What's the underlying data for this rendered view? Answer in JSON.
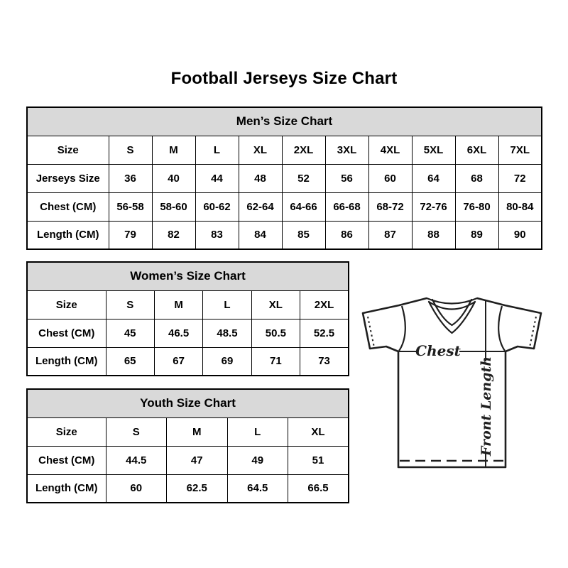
{
  "title": "Football Jerseys Size Chart",
  "tables": {
    "mens": {
      "title": "Men’s Size Chart",
      "rows": [
        {
          "label": "Size",
          "values": [
            "S",
            "M",
            "L",
            "XL",
            "2XL",
            "3XL",
            "4XL",
            "5XL",
            "6XL",
            "7XL"
          ]
        },
        {
          "label": "Jerseys Size",
          "values": [
            "36",
            "40",
            "44",
            "48",
            "52",
            "56",
            "60",
            "64",
            "68",
            "72"
          ]
        },
        {
          "label": "Chest (CM)",
          "values": [
            "56-58",
            "58-60",
            "60-62",
            "62-64",
            "64-66",
            "66-68",
            "68-72",
            "72-76",
            "76-80",
            "80-84"
          ]
        },
        {
          "label": "Length (CM)",
          "values": [
            "79",
            "82",
            "83",
            "84",
            "85",
            "86",
            "87",
            "88",
            "89",
            "90"
          ]
        }
      ]
    },
    "womens": {
      "title": "Women’s Size Chart",
      "rows": [
        {
          "label": "Size",
          "values": [
            "S",
            "M",
            "L",
            "XL",
            "2XL"
          ]
        },
        {
          "label": "Chest (CM)",
          "values": [
            "45",
            "46.5",
            "48.5",
            "50.5",
            "52.5"
          ]
        },
        {
          "label": "Length (CM)",
          "values": [
            "65",
            "67",
            "69",
            "71",
            "73"
          ]
        }
      ]
    },
    "youth": {
      "title": "Youth Size Chart",
      "rows": [
        {
          "label": "Size",
          "values": [
            "S",
            "M",
            "L",
            "XL"
          ]
        },
        {
          "label": "Chest (CM)",
          "values": [
            "44.5",
            "47",
            "49",
            "51"
          ]
        },
        {
          "label": "Length (CM)",
          "values": [
            "60",
            "62.5",
            "64.5",
            "66.5"
          ]
        }
      ]
    }
  },
  "diagram": {
    "chest_label": "Chest",
    "front_length_label": "Front Length"
  },
  "colors": {
    "header_bg": "#d9d9d9",
    "border": "#000000",
    "text": "#000000",
    "line": "#1f1f1f"
  }
}
